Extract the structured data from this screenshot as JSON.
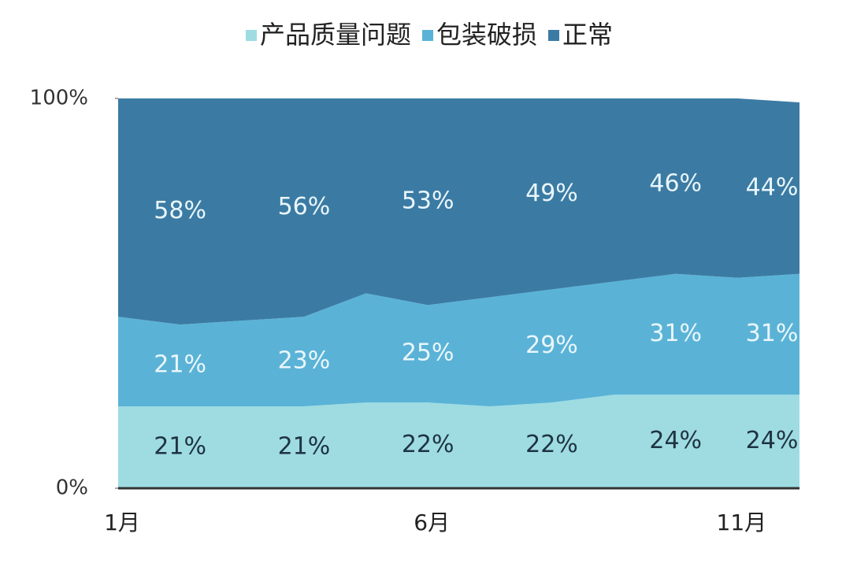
{
  "chart_data": {
    "type": "stacked_area_percent",
    "categories": [
      "1月",
      null,
      null,
      null,
      null,
      "6月",
      null,
      null,
      null,
      null,
      "11月",
      null
    ],
    "series": [
      {
        "name": "产品质量问题",
        "color": "#9edce2",
        "label_color": "#1f3340",
        "values": [
          21,
          21,
          21,
          21,
          22,
          22,
          21,
          22,
          24,
          24,
          24,
          24
        ],
        "value_labels": [
          null,
          "21%",
          null,
          "21%",
          null,
          "22%",
          null,
          "22%",
          null,
          "24%",
          null,
          "24%"
        ]
      },
      {
        "name": "包装破损",
        "color": "#5ab3d6",
        "label_color": "#eaf6fb",
        "values": [
          23,
          21,
          22,
          23,
          28,
          25,
          28,
          29,
          29,
          31,
          30,
          31
        ],
        "value_labels": [
          null,
          "21%",
          null,
          "23%",
          null,
          "25%",
          null,
          "29%",
          null,
          "31%",
          null,
          "31%"
        ]
      },
      {
        "name": "正常",
        "color": "#3b7ba3",
        "label_color": "#eaf6fb",
        "values": [
          56,
          58,
          57,
          56,
          50,
          53,
          51,
          49,
          47,
          46,
          46,
          44
        ],
        "value_labels": [
          null,
          "58%",
          null,
          "56%",
          null,
          "53%",
          null,
          "49%",
          null,
          "46%",
          null,
          "44%"
        ]
      }
    ],
    "ylim": [
      0,
      100
    ],
    "yticks": [
      {
        "value": 0,
        "label": "0%"
      },
      {
        "value": 100,
        "label": "100%"
      }
    ],
    "legend": "top"
  }
}
